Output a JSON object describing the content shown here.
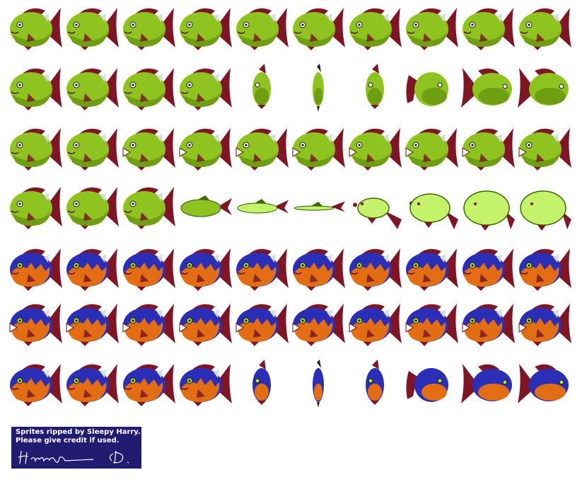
{
  "colors": {
    "green_body": "#8fc31f",
    "green_shade": "#6f9e12",
    "pale_green": "#c4f26a",
    "fin": "#7e1626",
    "blue_back": "#2b2fb8",
    "orange_belly": "#e36d12",
    "eye_green": "#b9e62e",
    "panel": "#231a72",
    "white": "#ffffff"
  },
  "rows": [
    {
      "species": "green",
      "frames": [
        "side",
        "side",
        "side",
        "side",
        "side",
        "side",
        "side",
        "side",
        "side",
        "side"
      ]
    },
    {
      "species": "green",
      "frames": [
        "side",
        "side",
        "side",
        "side",
        "turn",
        "front",
        "turn",
        "back",
        "backside",
        "backside"
      ]
    },
    {
      "species": "green",
      "frames": [
        "side",
        "side",
        "bite",
        "bite",
        "bite",
        "bite",
        "bite",
        "bite",
        "bite",
        "bite"
      ]
    },
    {
      "species": "green",
      "frames": [
        "side",
        "side",
        "side",
        "flat",
        "flat2",
        "flat3",
        "puff1",
        "puff2",
        "puff3",
        "puff3"
      ]
    },
    {
      "species": "blue",
      "frames": [
        "side",
        "side",
        "side",
        "side",
        "side",
        "side",
        "side",
        "side",
        "side",
        "side"
      ]
    },
    {
      "species": "blue",
      "frames": [
        "bite",
        "bite",
        "bite",
        "bite",
        "bite",
        "bite",
        "bite",
        "bite",
        "bite",
        "bite"
      ]
    },
    {
      "species": "blue",
      "frames": [
        "side",
        "side",
        "side",
        "side",
        "turn",
        "front",
        "turn",
        "back",
        "backside",
        "backside"
      ]
    }
  ],
  "credit": {
    "line1": "Sprites ripped by Sleepy Harry.",
    "line2": "Please give credit if used.",
    "signature": "signature"
  }
}
